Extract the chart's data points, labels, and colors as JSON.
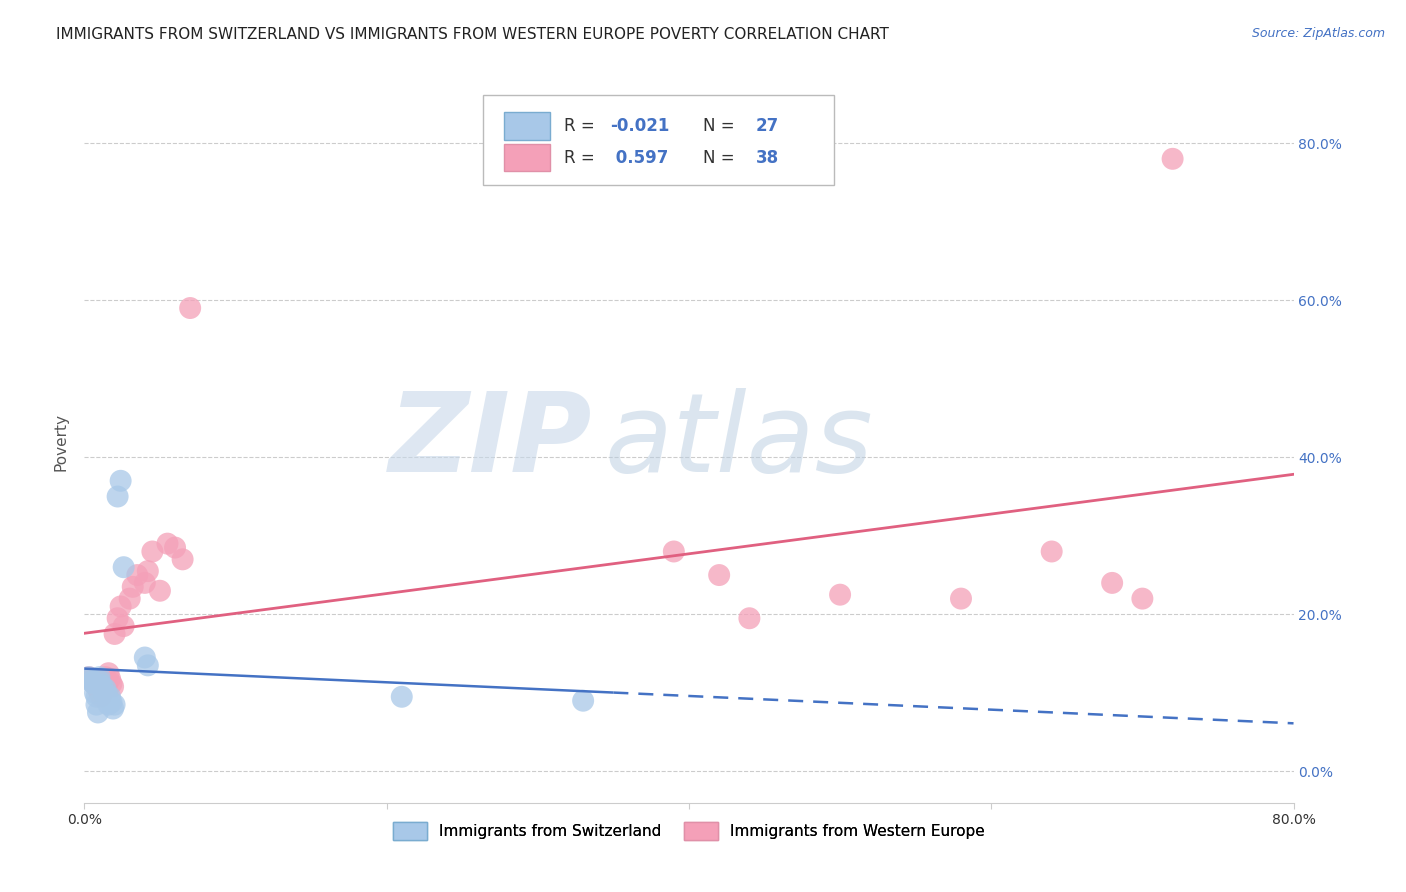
{
  "title": "IMMIGRANTS FROM SWITZERLAND VS IMMIGRANTS FROM WESTERN EUROPE POVERTY CORRELATION CHART",
  "source": "Source: ZipAtlas.com",
  "ylabel": "Poverty",
  "xlim": [
    0.0,
    0.8
  ],
  "ylim": [
    -0.04,
    0.88
  ],
  "x_ticks": [
    0.0,
    0.2,
    0.4,
    0.6,
    0.8
  ],
  "x_tick_labels": [
    "0.0%",
    "",
    "",
    "",
    "80.0%"
  ],
  "y_ticks_right": [
    0.0,
    0.2,
    0.4,
    0.6,
    0.8
  ],
  "y_tick_labels_right": [
    "0.0%",
    "20.0%",
    "40.0%",
    "60.0%",
    "80.0%"
  ],
  "switzerland_color": "#a8c8e8",
  "western_europe_color": "#f4a0b8",
  "switzerland_line_color": "#4472c4",
  "western_europe_line_color": "#e06080",
  "legend_R1": "-0.021",
  "legend_N1": "27",
  "legend_R2": "0.597",
  "legend_N2": "38",
  "watermark_zip_color": "#c8d8ea",
  "watermark_atlas_color": "#b8cce0",
  "background_color": "#ffffff",
  "grid_color": "#cccccc",
  "title_fontsize": 11,
  "axis_label_color": "#4472c4",
  "swiss_x": [
    0.003,
    0.004,
    0.005,
    0.006,
    0.007,
    0.008,
    0.008,
    0.009,
    0.01,
    0.01,
    0.011,
    0.012,
    0.013,
    0.014,
    0.015,
    0.016,
    0.017,
    0.018,
    0.019,
    0.02,
    0.022,
    0.024,
    0.026,
    0.04,
    0.042,
    0.21,
    0.33
  ],
  "swiss_y": [
    0.12,
    0.118,
    0.114,
    0.112,
    0.1,
    0.095,
    0.085,
    0.075,
    0.12,
    0.115,
    0.11,
    0.108,
    0.1,
    0.105,
    0.098,
    0.085,
    0.095,
    0.088,
    0.08,
    0.085,
    0.35,
    0.37,
    0.26,
    0.145,
    0.135,
    0.095,
    0.09
  ],
  "we_x": [
    0.003,
    0.005,
    0.007,
    0.009,
    0.01,
    0.011,
    0.012,
    0.013,
    0.014,
    0.015,
    0.016,
    0.017,
    0.018,
    0.019,
    0.02,
    0.022,
    0.024,
    0.026,
    0.03,
    0.032,
    0.035,
    0.04,
    0.042,
    0.045,
    0.05,
    0.055,
    0.06,
    0.065,
    0.07,
    0.39,
    0.42,
    0.44,
    0.5,
    0.58,
    0.64,
    0.68,
    0.7,
    0.72
  ],
  "we_y": [
    0.12,
    0.118,
    0.11,
    0.105,
    0.1,
    0.095,
    0.108,
    0.115,
    0.12,
    0.11,
    0.125,
    0.118,
    0.112,
    0.108,
    0.175,
    0.195,
    0.21,
    0.185,
    0.22,
    0.235,
    0.25,
    0.24,
    0.255,
    0.28,
    0.23,
    0.29,
    0.285,
    0.27,
    0.59,
    0.28,
    0.25,
    0.195,
    0.225,
    0.22,
    0.28,
    0.24,
    0.22,
    0.78
  ]
}
